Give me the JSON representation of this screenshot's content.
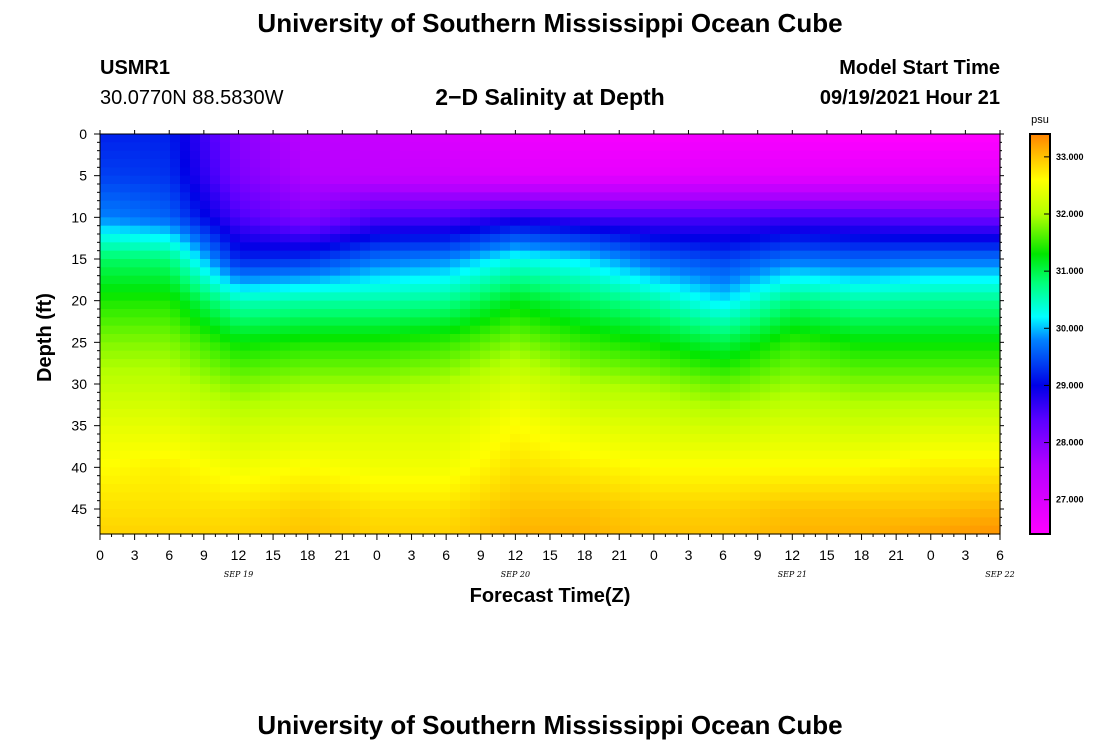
{
  "header": {
    "title_top": "University of Southern Mississippi Ocean Cube",
    "station_id": "USMR1",
    "station_coords": "30.0770N  88.5830W",
    "plot_title": "2−D Salinity at Depth",
    "model_start_label": "Model Start Time",
    "model_start_value": "09/19/2021 Hour 21",
    "title_bottom": "University of Southern Mississippi Ocean Cube"
  },
  "chart_data": {
    "type": "heatmap",
    "title": "2−D Salinity at Depth",
    "xlabel": "Forecast Time(Z)",
    "ylabel": "Depth (ft)",
    "x_tick_labels": [
      "0",
      "3",
      "6",
      "9",
      "12",
      "15",
      "18",
      "21",
      "0",
      "3",
      "6",
      "9",
      "12",
      "15",
      "18",
      "21",
      "0",
      "3",
      "6",
      "9",
      "12",
      "15",
      "18",
      "21",
      "0",
      "3",
      "6"
    ],
    "x_date_labels": [
      {
        "tick_index": 4,
        "label": "SEP 19"
      },
      {
        "tick_index": 12,
        "label": "SEP 20"
      },
      {
        "tick_index": 20,
        "label": "SEP 21"
      },
      {
        "tick_index": 26,
        "label": "SEP 22"
      }
    ],
    "y_ticks": [
      0,
      5,
      10,
      15,
      20,
      25,
      30,
      35,
      40,
      45
    ],
    "y_range": [
      0,
      48
    ],
    "x_range_hours": [
      0,
      78
    ],
    "colorbar": {
      "unit": "psu",
      "range": [
        26.4,
        33.4
      ],
      "tick_values": [
        27,
        28,
        29,
        30,
        31,
        32,
        33
      ],
      "tick_labels": [
        "27.000",
        "28.000",
        "29.000",
        "30.000",
        "31.000",
        "32.000",
        "33.000"
      ]
    },
    "profile_times_hours": [
      0,
      6,
      12,
      18,
      24,
      30,
      36,
      42,
      48,
      54,
      60,
      66,
      72,
      78
    ],
    "profile_depths_ft": [
      0,
      5,
      10,
      15,
      20,
      25,
      30,
      35,
      40,
      45,
      48
    ],
    "salinity_psu": [
      [
        29.2,
        29.4,
        29.8,
        30.9,
        31.4,
        31.8,
        32.1,
        32.4,
        32.6,
        32.8,
        32.9
      ],
      [
        29.2,
        29.3,
        29.6,
        30.8,
        31.4,
        31.8,
        32.1,
        32.4,
        32.7,
        32.8,
        32.9
      ],
      [
        28.0,
        28.1,
        28.5,
        29.2,
        30.5,
        31.3,
        31.8,
        32.2,
        32.5,
        32.8,
        32.9
      ],
      [
        27.5,
        27.6,
        28.0,
        29.3,
        30.6,
        31.4,
        31.9,
        32.3,
        32.6,
        32.9,
        33.0
      ],
      [
        27.3,
        27.4,
        28.5,
        29.7,
        30.6,
        31.4,
        31.9,
        32.3,
        32.5,
        32.8,
        32.9
      ],
      [
        27.0,
        27.2,
        28.5,
        29.8,
        30.7,
        31.5,
        32.0,
        32.3,
        32.5,
        32.8,
        32.9
      ],
      [
        26.7,
        26.9,
        28.8,
        30.3,
        31.2,
        31.8,
        32.3,
        32.6,
        32.8,
        33.0,
        33.1
      ],
      [
        26.6,
        26.8,
        28.6,
        30.1,
        30.9,
        31.5,
        32.0,
        32.4,
        32.7,
        33.0,
        33.1
      ],
      [
        26.5,
        26.8,
        28.5,
        29.6,
        30.6,
        31.3,
        31.9,
        32.3,
        32.6,
        32.9,
        33.0
      ],
      [
        26.6,
        26.9,
        28.5,
        29.4,
        30.1,
        31.0,
        31.7,
        32.2,
        32.6,
        32.9,
        33.0
      ],
      [
        26.5,
        26.8,
        28.6,
        29.7,
        30.8,
        31.5,
        31.9,
        32.3,
        32.6,
        33.0,
        33.1
      ],
      [
        26.4,
        26.8,
        28.5,
        29.6,
        30.6,
        31.3,
        31.8,
        32.2,
        32.6,
        33.0,
        33.1
      ],
      [
        26.4,
        26.8,
        28.3,
        29.7,
        30.7,
        31.3,
        31.8,
        32.3,
        32.7,
        33.0,
        33.2
      ],
      [
        26.4,
        26.8,
        28.2,
        29.7,
        30.7,
        31.3,
        31.8,
        32.3,
        32.7,
        33.1,
        33.3
      ]
    ]
  }
}
